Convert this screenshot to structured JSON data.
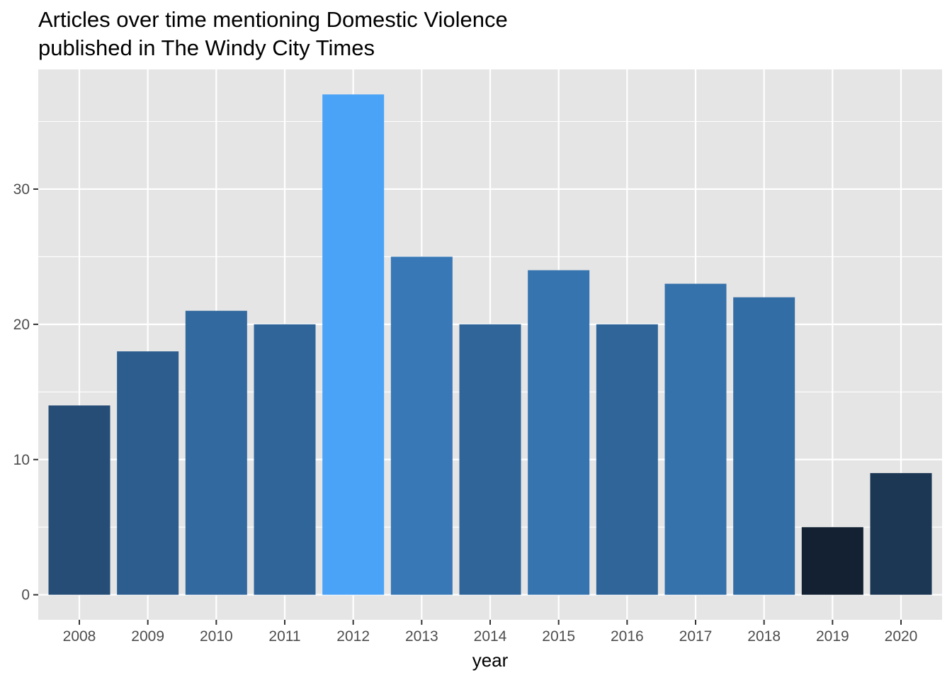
{
  "title_line1": "Articles over time mentioning Domestic Violence",
  "title_line2": "published in The Windy City Times",
  "chart_data": {
    "type": "bar",
    "title": "Articles over time mentioning Domestic Violence published in The Windy City Times",
    "xlabel": "year",
    "ylabel": "",
    "categories": [
      "2008",
      "2009",
      "2010",
      "2011",
      "2012",
      "2013",
      "2014",
      "2015",
      "2016",
      "2017",
      "2018",
      "2019",
      "2020"
    ],
    "values": [
      14,
      18,
      21,
      20,
      37,
      25,
      20,
      24,
      20,
      23,
      22,
      5,
      9
    ],
    "ylim": [
      -1.85,
      38.85
    ],
    "yticks": [
      0,
      10,
      20,
      30
    ],
    "grid": true,
    "legend": "none",
    "colors": {
      "panel": "#e5e5e5",
      "grid": "#ffffff",
      "bar_low": "#132132",
      "bar_high": "#4aa3f7",
      "tick_text": "#4d4d4d",
      "tick_mark": "#333333"
    }
  }
}
